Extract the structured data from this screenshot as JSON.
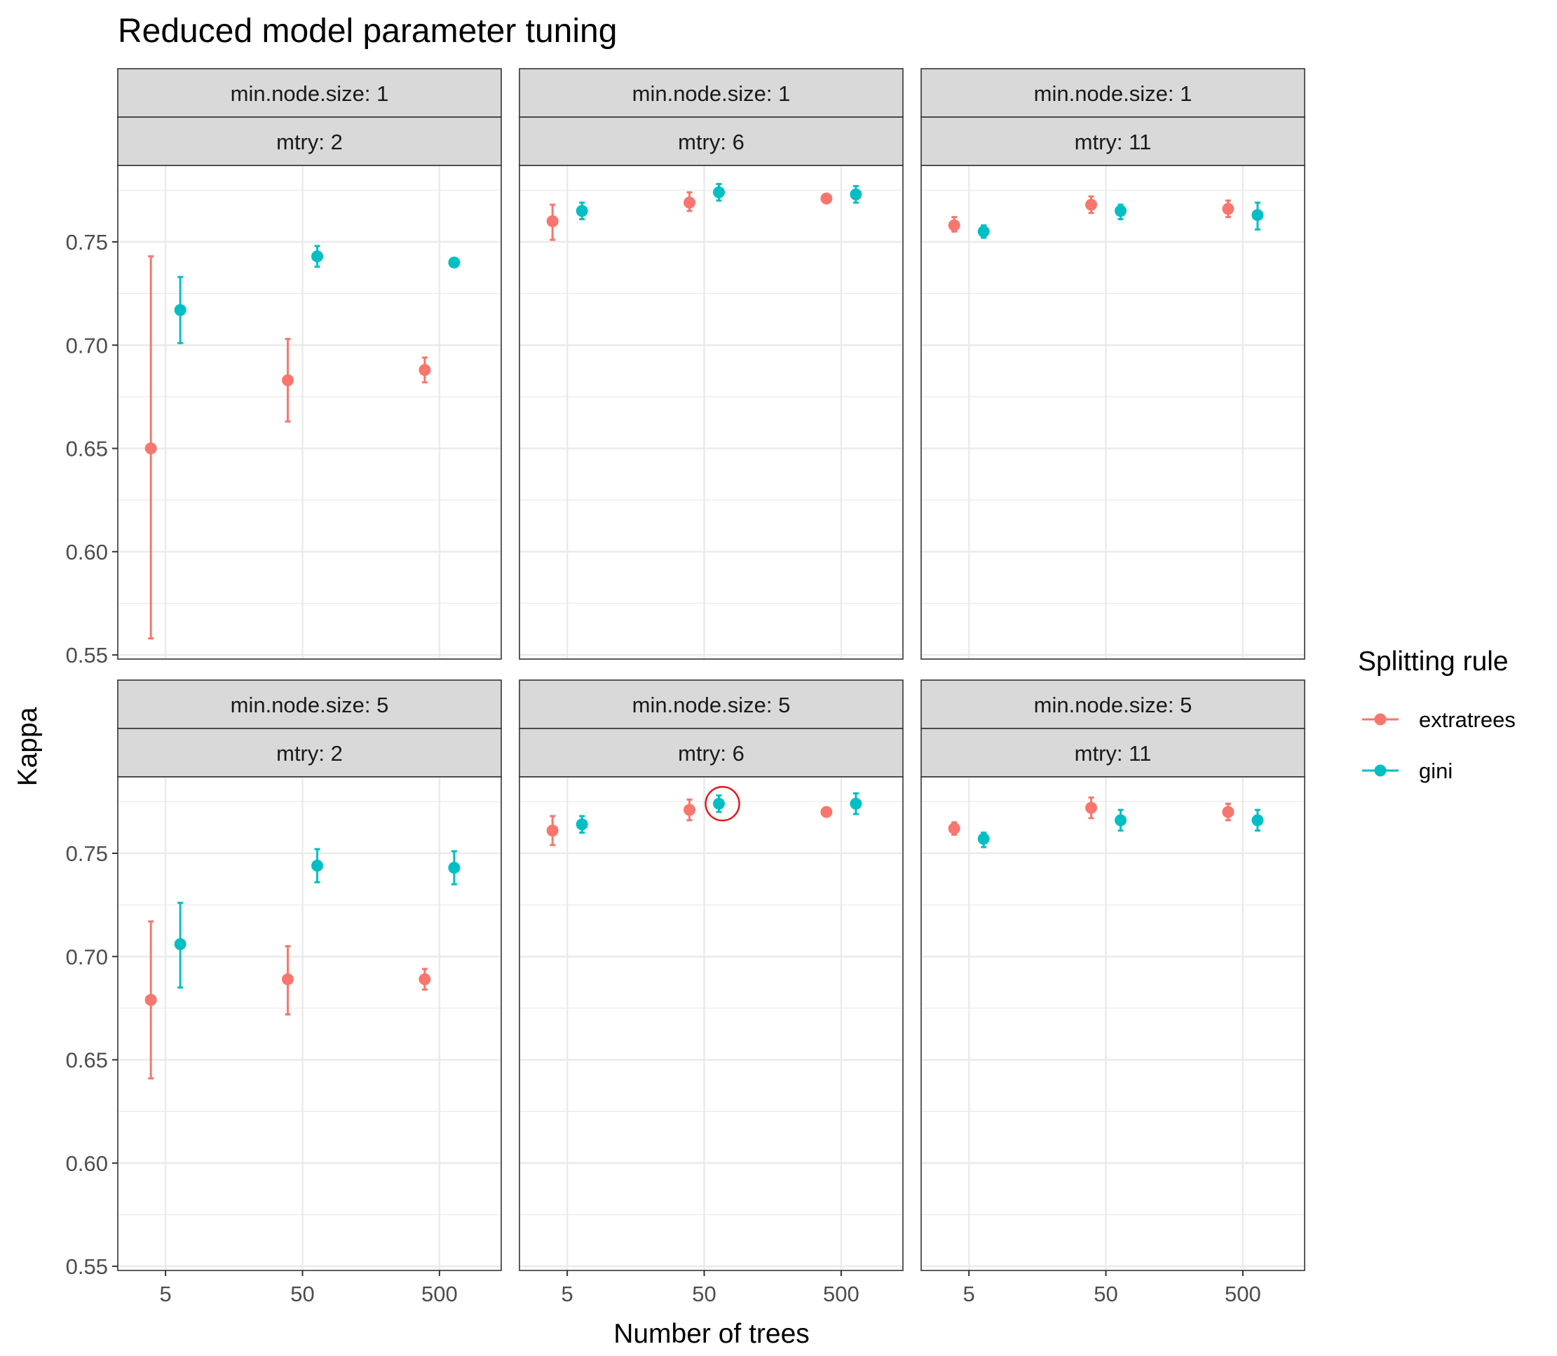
{
  "chart_data": {
    "type": "scatter",
    "title": "Reduced model parameter tuning",
    "xlabel": "Number of trees",
    "ylabel": "Kappa",
    "x_scale": "log10",
    "x_ticks": [
      "5",
      "50",
      "500"
    ],
    "y_ticks": [
      "0.55",
      "0.60",
      "0.65",
      "0.70",
      "0.75"
    ],
    "ylim": [
      0.548,
      0.787
    ],
    "grid": true,
    "legend": {
      "title": "Splitting rule",
      "position": "right",
      "entries": [
        {
          "name": "extratrees",
          "color": "#F8766D"
        },
        {
          "name": "gini",
          "color": "#00BFC4"
        }
      ]
    },
    "error_bars": true,
    "highlight": {
      "panel": "min.node.size: 5 / mtry: 6",
      "series": "gini",
      "x": 50,
      "mark": "red circle"
    },
    "panels": [
      {
        "strip1": "min.node.size: 1",
        "strip2": "mtry: 2",
        "series": [
          {
            "name": "extratrees",
            "points": [
              {
                "x": 5,
                "y": 0.65,
                "ymin": 0.558,
                "ymax": 0.743
              },
              {
                "x": 50,
                "y": 0.683,
                "ymin": 0.663,
                "ymax": 0.703
              },
              {
                "x": 500,
                "y": 0.688,
                "ymin": 0.682,
                "ymax": 0.694
              }
            ]
          },
          {
            "name": "gini",
            "points": [
              {
                "x": 5,
                "y": 0.717,
                "ymin": 0.701,
                "ymax": 0.733
              },
              {
                "x": 50,
                "y": 0.743,
                "ymin": 0.738,
                "ymax": 0.748
              },
              {
                "x": 500,
                "y": 0.74,
                "ymin": 0.738,
                "ymax": 0.742
              }
            ]
          }
        ]
      },
      {
        "strip1": "min.node.size: 1",
        "strip2": "mtry: 6",
        "series": [
          {
            "name": "extratrees",
            "points": [
              {
                "x": 5,
                "y": 0.76,
                "ymin": 0.751,
                "ymax": 0.768
              },
              {
                "x": 50,
                "y": 0.769,
                "ymin": 0.765,
                "ymax": 0.774
              },
              {
                "x": 500,
                "y": 0.771,
                "ymin": 0.77,
                "ymax": 0.772
              }
            ]
          },
          {
            "name": "gini",
            "points": [
              {
                "x": 5,
                "y": 0.765,
                "ymin": 0.761,
                "ymax": 0.769
              },
              {
                "x": 50,
                "y": 0.774,
                "ymin": 0.77,
                "ymax": 0.778
              },
              {
                "x": 500,
                "y": 0.773,
                "ymin": 0.769,
                "ymax": 0.777
              }
            ]
          }
        ]
      },
      {
        "strip1": "min.node.size: 1",
        "strip2": "mtry: 11",
        "series": [
          {
            "name": "extratrees",
            "points": [
              {
                "x": 5,
                "y": 0.758,
                "ymin": 0.755,
                "ymax": 0.762
              },
              {
                "x": 50,
                "y": 0.768,
                "ymin": 0.764,
                "ymax": 0.772
              },
              {
                "x": 500,
                "y": 0.766,
                "ymin": 0.762,
                "ymax": 0.77
              }
            ]
          },
          {
            "name": "gini",
            "points": [
              {
                "x": 5,
                "y": 0.755,
                "ymin": 0.752,
                "ymax": 0.758
              },
              {
                "x": 50,
                "y": 0.765,
                "ymin": 0.761,
                "ymax": 0.768
              },
              {
                "x": 500,
                "y": 0.763,
                "ymin": 0.756,
                "ymax": 0.769
              }
            ]
          }
        ]
      },
      {
        "strip1": "min.node.size: 5",
        "strip2": "mtry: 2",
        "series": [
          {
            "name": "extratrees",
            "points": [
              {
                "x": 5,
                "y": 0.679,
                "ymin": 0.641,
                "ymax": 0.717
              },
              {
                "x": 50,
                "y": 0.689,
                "ymin": 0.672,
                "ymax": 0.705
              },
              {
                "x": 500,
                "y": 0.689,
                "ymin": 0.684,
                "ymax": 0.694
              }
            ]
          },
          {
            "name": "gini",
            "points": [
              {
                "x": 5,
                "y": 0.706,
                "ymin": 0.685,
                "ymax": 0.726
              },
              {
                "x": 50,
                "y": 0.744,
                "ymin": 0.736,
                "ymax": 0.752
              },
              {
                "x": 500,
                "y": 0.743,
                "ymin": 0.735,
                "ymax": 0.751
              }
            ]
          }
        ]
      },
      {
        "strip1": "min.node.size: 5",
        "strip2": "mtry: 6",
        "series": [
          {
            "name": "extratrees",
            "points": [
              {
                "x": 5,
                "y": 0.761,
                "ymin": 0.754,
                "ymax": 0.768
              },
              {
                "x": 50,
                "y": 0.771,
                "ymin": 0.766,
                "ymax": 0.776
              },
              {
                "x": 500,
                "y": 0.77,
                "ymin": 0.768,
                "ymax": 0.772
              }
            ]
          },
          {
            "name": "gini",
            "points": [
              {
                "x": 5,
                "y": 0.764,
                "ymin": 0.76,
                "ymax": 0.768
              },
              {
                "x": 50,
                "y": 0.774,
                "ymin": 0.77,
                "ymax": 0.778
              },
              {
                "x": 500,
                "y": 0.774,
                "ymin": 0.769,
                "ymax": 0.779
              }
            ]
          }
        ]
      },
      {
        "strip1": "min.node.size: 5",
        "strip2": "mtry: 11",
        "series": [
          {
            "name": "extratrees",
            "points": [
              {
                "x": 5,
                "y": 0.762,
                "ymin": 0.759,
                "ymax": 0.765
              },
              {
                "x": 50,
                "y": 0.772,
                "ymin": 0.767,
                "ymax": 0.777
              },
              {
                "x": 500,
                "y": 0.77,
                "ymin": 0.766,
                "ymax": 0.774
              }
            ]
          },
          {
            "name": "gini",
            "points": [
              {
                "x": 5,
                "y": 0.757,
                "ymin": 0.753,
                "ymax": 0.76
              },
              {
                "x": 50,
                "y": 0.766,
                "ymin": 0.761,
                "ymax": 0.771
              },
              {
                "x": 500,
                "y": 0.766,
                "ymin": 0.761,
                "ymax": 0.771
              }
            ]
          }
        ]
      }
    ]
  }
}
